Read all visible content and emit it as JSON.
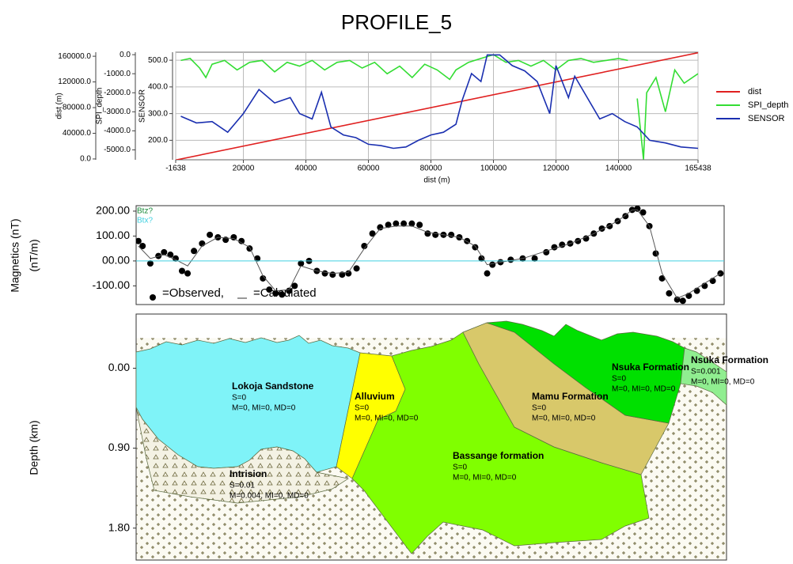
{
  "title": "PROFILE_5",
  "chart_data": [
    {
      "type": "line",
      "xlabel": "dist (m)",
      "xlim": [
        -1638,
        165438
      ],
      "xticks": [
        -1638,
        20000,
        40000,
        60000,
        80000,
        100000,
        120000,
        140000,
        165438
      ],
      "ylabel": "dist (m)",
      "ylim": [
        -1300,
        166300
      ],
      "yticks": [
        {
          "value": 0,
          "label": "0.0"
        },
        {
          "value": 40000,
          "label": "40000.0"
        },
        {
          "value": 80000,
          "label": "80000.0"
        },
        {
          "value": 120000,
          "label": "120000.0"
        },
        {
          "value": 160000,
          "label": "160000.0"
        }
      ],
      "y2label": "SPI_depth",
      "y2lim": [
        -5520,
        130
      ],
      "y2ticks": [
        {
          "value": 0,
          "label": "0.0"
        },
        {
          "value": -1000,
          "label": "-1000.0"
        },
        {
          "value": -2000,
          "label": "-2000.0"
        },
        {
          "value": -3000,
          "label": "-3000.0"
        },
        {
          "value": -4000,
          "label": "-4000.0"
        },
        {
          "value": -5000,
          "label": "-5000.0"
        }
      ],
      "y3label": "SENSOR",
      "y3lim": [
        127,
        530
      ],
      "y3ticks": [
        {
          "value": 200,
          "label": "200.0"
        },
        {
          "value": 300,
          "label": "300.0"
        },
        {
          "value": 400,
          "label": "400.0"
        },
        {
          "value": 500,
          "label": "500.0"
        }
      ],
      "grid": true,
      "legend": "right",
      "series": [
        {
          "name": "dist",
          "color": "#e02020",
          "axis": "y",
          "x": [
            -1638,
            165438
          ],
          "values": [
            -1638,
            165438
          ]
        },
        {
          "name": "SPI_depth",
          "color": "#33dd33",
          "axis": "y2",
          "x": [
            0,
            3000,
            6000,
            8000,
            10000,
            14000,
            18000,
            22000,
            26000,
            30000,
            34000,
            38000,
            42000,
            46000,
            50000,
            54000,
            58000,
            62000,
            66000,
            70000,
            74000,
            78000,
            82000,
            86000,
            88000,
            92000,
            96000,
            100000,
            104000,
            108000,
            112000,
            116000,
            120000,
            124000,
            128000,
            132000,
            136000,
            140000,
            143000,
            145000,
            146000,
            148000,
            149000,
            152000,
            155000,
            158000,
            161000,
            165438
          ],
          "values": [
            -300,
            -200,
            -700,
            -1200,
            -500,
            -300,
            -800,
            -400,
            -300,
            -900,
            -400,
            -600,
            -300,
            -800,
            -400,
            -300,
            -700,
            -400,
            -1000,
            -600,
            -1200,
            -500,
            -800,
            -1300,
            -800,
            -400,
            -200,
            0,
            -400,
            -300,
            -600,
            -300,
            -800,
            -300,
            -200,
            -400,
            -300,
            -200,
            -300,
            null,
            -2300,
            -5500,
            -2000,
            -1200,
            -3000,
            -800,
            -1500,
            -1000
          ]
        },
        {
          "name": "SENSOR",
          "color": "#1a2fb0",
          "axis": "y3",
          "x": [
            0,
            5000,
            10000,
            15000,
            20000,
            25000,
            30000,
            35000,
            38000,
            42000,
            45000,
            48000,
            52000,
            56000,
            60000,
            64000,
            68000,
            72000,
            76000,
            80000,
            84000,
            88000,
            90000,
            93000,
            96000,
            98000,
            102000,
            106000,
            110000,
            114000,
            118000,
            120000,
            124000,
            126000,
            130000,
            134000,
            138000,
            142000,
            146000,
            150000,
            155000,
            160000,
            165438
          ],
          "values": [
            290,
            265,
            270,
            230,
            300,
            390,
            340,
            360,
            300,
            280,
            380,
            250,
            220,
            210,
            185,
            180,
            170,
            175,
            200,
            220,
            230,
            260,
            350,
            450,
            420,
            520,
            520,
            480,
            460,
            420,
            300,
            480,
            360,
            440,
            360,
            280,
            300,
            270,
            250,
            200,
            190,
            175,
            170
          ]
        }
      ]
    },
    {
      "type": "profile",
      "ylabel": "Magnetics (nT)",
      "ylabel2": "(nT/m)",
      "xlim": [
        -1638,
        165438
      ],
      "ylim": [
        -175,
        222
      ],
      "yticks": [
        {
          "value": 200,
          "label": "200.00"
        },
        {
          "value": 100,
          "label": "100.00"
        },
        {
          "value": 0,
          "label": "00.00"
        },
        {
          "value": -100,
          "label": "-100.00"
        }
      ],
      "annotations": [
        "Btz?"
      ],
      "series": [
        {
          "name": "=Observed,",
          "color": "#000000",
          "marker": true,
          "x": [
            -1000,
            200,
            2400,
            4700,
            6300,
            8100,
            9600,
            11400,
            13000,
            14800,
            17100,
            19300,
            21600,
            23800,
            26100,
            28300,
            30600,
            32800,
            34400,
            36200,
            38000,
            39800,
            41800,
            43400,
            45200,
            47500,
            49700,
            52000,
            54200,
            56900,
            58700,
            61000,
            63200,
            65500,
            67700,
            70000,
            72200,
            74400,
            76700,
            78900,
            81200,
            83400,
            85700,
            87900,
            90200,
            92400,
            94700,
            96500,
            98100,
            99600,
            101900,
            104800,
            108200,
            111600,
            114900,
            117200,
            119400,
            121700,
            123900,
            126200,
            128400,
            130700,
            132900,
            135200,
            137400,
            139300,
            140800,
            142400,
            144200,
            146000,
            147800,
            149800,
            152100,
            153700,
            155400,
            157700,
            159900,
            162200,
            164400
          ],
          "values": [
            80,
            60,
            -10,
            20,
            35,
            25,
            10,
            -40,
            -50,
            40,
            70,
            105,
            95,
            85,
            95,
            80,
            50,
            10,
            -70,
            -115,
            -130,
            -135,
            -120,
            -100,
            -10,
            0,
            -40,
            -50,
            -55,
            -55,
            -50,
            -30,
            60,
            110,
            135,
            145,
            150,
            150,
            150,
            145,
            110,
            105,
            105,
            105,
            95,
            80,
            55,
            10,
            -50,
            -15,
            -5,
            5,
            10,
            10,
            35,
            55,
            65,
            70,
            80,
            90,
            110,
            130,
            140,
            160,
            180,
            205,
            210,
            195,
            140,
            30,
            -70,
            -130,
            -155,
            -160,
            -140,
            -120,
            -100,
            -80,
            -50
          ]
        },
        {
          "name": "=Calculated",
          "color": "#555555",
          "marker": false,
          "x": [
            -1000,
            2400,
            6300,
            9600,
            13000,
            17100,
            21600,
            26100,
            30600,
            34400,
            38000,
            41800,
            45200,
            49700,
            54200,
            58700,
            63200,
            67700,
            72200,
            76700,
            81200,
            85700,
            90200,
            94700,
            98100,
            101900,
            108200,
            114900,
            121700,
            128400,
            135200,
            139300,
            140800,
            144200,
            147800,
            152100,
            155400,
            159900,
            164400
          ],
          "values": [
            60,
            10,
            25,
            5,
            -20,
            60,
            95,
            90,
            55,
            -60,
            -120,
            -115,
            -20,
            -40,
            -50,
            -45,
            50,
            130,
            140,
            140,
            115,
            105,
            95,
            60,
            -15,
            -5,
            10,
            40,
            70,
            110,
            160,
            205,
            205,
            140,
            -50,
            -150,
            -130,
            -90,
            -50
          ]
        },
        {
          "name": "Btx?",
          "color": "#40d0e0",
          "marker": false,
          "x": [
            -1638,
            165438
          ],
          "values": [
            0,
            0
          ]
        }
      ]
    }
  ],
  "section": {
    "ylabel": "Depth (km)",
    "ylim": [
      -0.61,
      2.16
    ],
    "yticks": [
      {
        "value": 0,
        "label": "0.00"
      },
      {
        "value": 0.9,
        "label": "0.90"
      },
      {
        "value": 1.8,
        "label": "1.80"
      }
    ],
    "bodies": [
      {
        "name": "Lokoja Sandstone",
        "s": "S=0",
        "m": "M=0, MI=0, MD=0"
      },
      {
        "name": "Alluvium",
        "s": "S=0",
        "m": "M=0, MI=0, MD=0"
      },
      {
        "name": "Bassange formation",
        "s": "S=0",
        "m": "M=0, MI=0, MD=0"
      },
      {
        "name": "Mamu Formation",
        "s": "S=0",
        "m": "M=0, MI=0, MD=0"
      },
      {
        "name": "Nsuka Formation",
        "s": "S=0",
        "m": "M=0, MI=0, MD=0"
      },
      {
        "name": "Nsuka Formation",
        "s": "S=0.001",
        "m": "M=0, MI=0, MD=0"
      },
      {
        "name": "Intrision",
        "s": "S=0.01",
        "m": "M=0.004, MI=0, MD=0"
      }
    ]
  }
}
